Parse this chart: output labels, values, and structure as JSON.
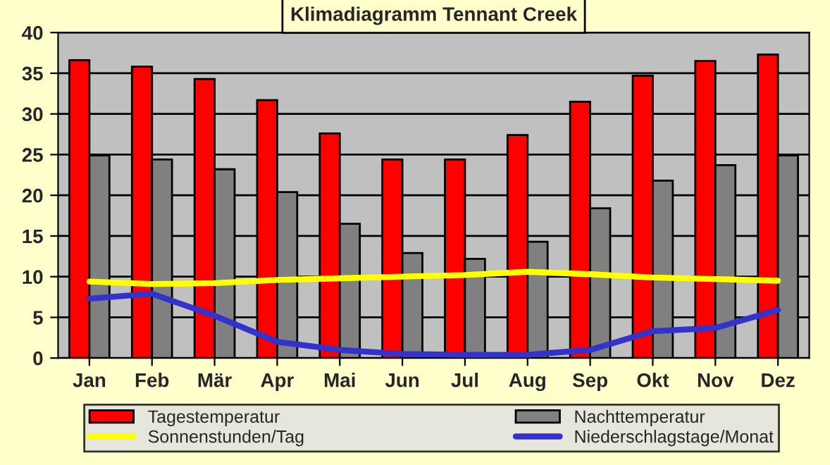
{
  "chart_data": {
    "type": "bar",
    "title": "Klimadiagramm Tennant Creek",
    "categories": [
      "Jan",
      "Feb",
      "Mär",
      "Apr",
      "Mai",
      "Jun",
      "Jul",
      "Aug",
      "Sep",
      "Okt",
      "Nov",
      "Dez"
    ],
    "series": [
      {
        "name": "Tagestemperatur",
        "color": "#ff0000",
        "values": [
          36.6,
          35.8,
          34.3,
          31.7,
          27.6,
          24.4,
          24.4,
          27.4,
          31.5,
          34.7,
          36.5,
          37.3
        ]
      },
      {
        "name": "Nachttemperatur",
        "color": "#808080",
        "values": [
          24.9,
          24.4,
          23.2,
          20.4,
          16.5,
          12.9,
          12.2,
          14.3,
          18.4,
          21.8,
          23.7,
          24.9
        ]
      },
      {
        "name": "Sonnenstunden/Tag",
        "type": "line",
        "color": "#ffff00",
        "values": [
          9.4,
          9.1,
          9.2,
          9.6,
          9.8,
          10.0,
          10.2,
          10.6,
          10.3,
          9.9,
          9.7,
          9.5
        ]
      },
      {
        "name": "Niederschlagstage/Monat",
        "type": "line",
        "color": "#3333cc",
        "values": [
          7.3,
          7.9,
          5.2,
          2.0,
          1.0,
          0.5,
          0.4,
          0.4,
          1.0,
          3.3,
          3.7,
          5.9
        ]
      }
    ],
    "ylim": [
      0,
      40
    ],
    "yticks": [
      0,
      5,
      10,
      15,
      20,
      25,
      30,
      35,
      40
    ],
    "grid": "y",
    "legend": "bottom"
  }
}
